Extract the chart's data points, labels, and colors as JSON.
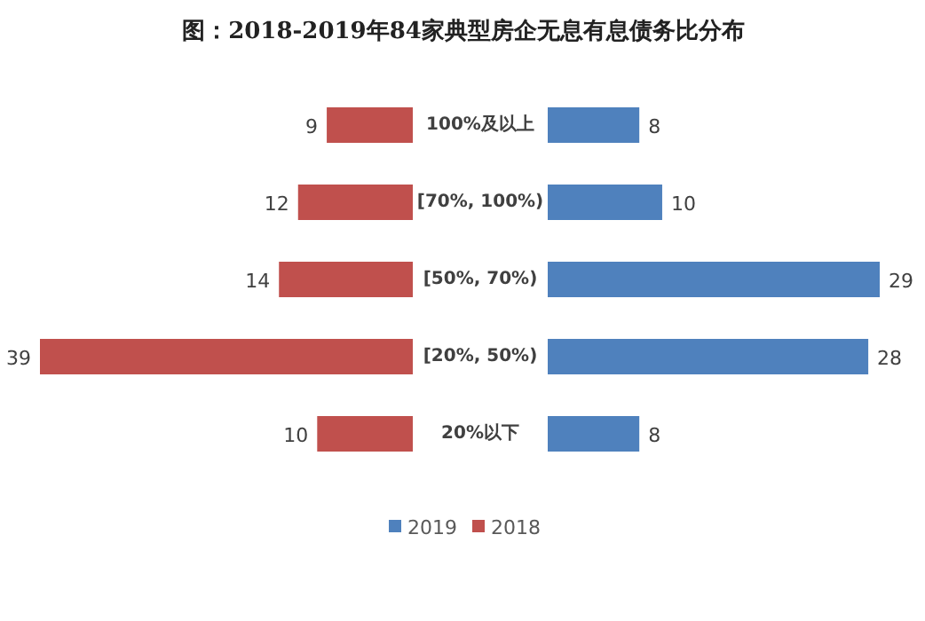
{
  "chart_data": [
    {
      "type": "bar",
      "orientation": "horizontal",
      "title": "图：2018-2019年84家典型房企无息有息债务比分布",
      "categories": [
        "100%及以上",
        "[70%, 100%)",
        "[50%, 70%)",
        "[20%, 50%)",
        "20%以下"
      ],
      "series": [
        {
          "name": "2018",
          "color": "#c0504d",
          "values": [
            9,
            12,
            14,
            39,
            10
          ]
        }
      ],
      "data_labels": true
    },
    {
      "type": "bar",
      "orientation": "horizontal",
      "categories": [
        null,
        null,
        null,
        null,
        null
      ],
      "series": [
        {
          "name": "2019",
          "color": "#4f81bd",
          "values": [
            8,
            10,
            29,
            28,
            8
          ]
        }
      ],
      "data_labels": true,
      "legend": "bottom"
    }
  ]
}
